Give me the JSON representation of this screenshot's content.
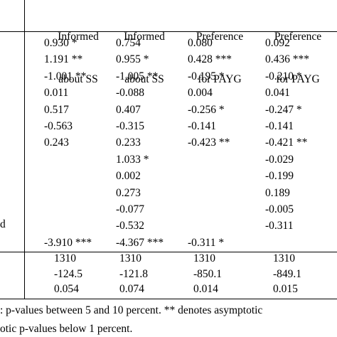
{
  "columns": [
    {
      "line1": "Informed",
      "line2": "about SS"
    },
    {
      "line1": "Informed",
      "line2": "about SS"
    },
    {
      "line1": "Preference",
      "line2": "for PAYG"
    },
    {
      "line1": "Preference",
      "line2": "for PAYG"
    }
  ],
  "row_label_fragment": "d",
  "rows": [
    [
      "0.930 *",
      "0.754",
      "0.080",
      "0.092"
    ],
    [
      "1.191 **",
      "0.955 *",
      "0.428 ***",
      "0.436 ***"
    ],
    [
      "-1.001 **",
      "-1.005 **",
      "-0.195 *",
      "-0.210 *"
    ],
    [
      "0.011",
      "-0.088",
      "0.004",
      "0.041"
    ],
    [
      "0.517",
      "0.407",
      "-0.256 *",
      "-0.247 *"
    ],
    [
      "-0.563",
      "-0.315",
      "-0.141",
      "-0.141"
    ],
    [
      "0.243",
      "0.233",
      "-0.423 **",
      "-0.421 **"
    ],
    [
      "",
      "1.033 *",
      "",
      "-0.029"
    ],
    [
      "",
      "0.002",
      "",
      "-0.199"
    ],
    [
      "",
      "0.273",
      "",
      "0.189"
    ],
    [
      "",
      "-0.077",
      "",
      "-0.005"
    ],
    [
      "",
      "-0.532",
      "",
      "-0.311"
    ],
    [
      "-3.910 ***",
      "-4.367 ***",
      "-0.311 *",
      ""
    ]
  ],
  "stats_rows": [
    [
      "1310",
      "1310",
      "1310",
      "1310"
    ],
    [
      "-124.5",
      "-121.8",
      "-850.1",
      "-849.1"
    ],
    [
      "0.054",
      "0.074",
      "0.014",
      "0.015"
    ]
  ],
  "footnote": {
    "line1": ": p-values between 5 and 10 percent. ** denotes asymptotic",
    "line2": "otic p-values below 1 percent."
  }
}
